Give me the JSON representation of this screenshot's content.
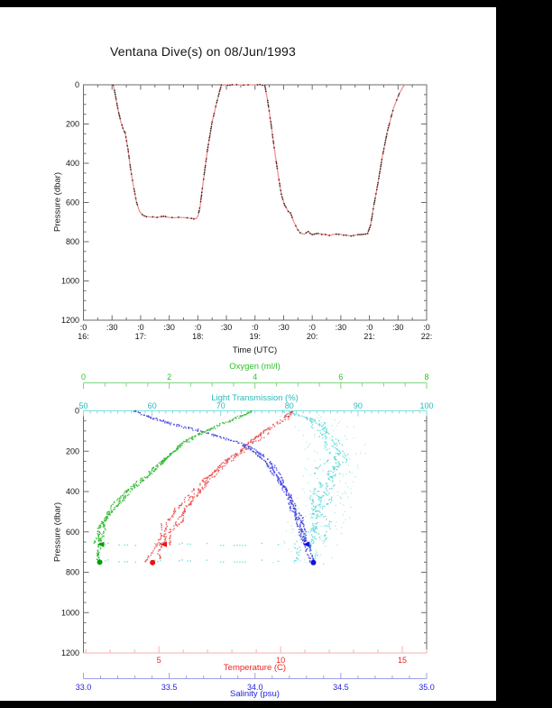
{
  "page": {
    "title": "Ventana Dive(s) on 08/Jun/1993",
    "background": "#ffffff",
    "frame_color": "#000000"
  },
  "colors": {
    "text": "#151515",
    "frame_axis": "#6b6b6b",
    "profile_line": "#f49090",
    "profile_dot": "#1a1a1a",
    "oxygen_line": "#7fd87f",
    "oxygen_text": "#2fbf2f",
    "light_line": "#7fdede",
    "light_text": "#25bcbc",
    "temp_line": "#f7b2b2",
    "temp_text": "#ee2222",
    "sal_line": "#9f9fe8",
    "sal_text": "#2222dd"
  },
  "chart_data": [
    {
      "type": "line",
      "title": "Ventana Dive(s) on 08/Jun/1993",
      "xlabel": "Time (UTC)",
      "ylabel": "Pressure (dbar)",
      "xlim": [
        16,
        22
      ],
      "ylim": [
        0,
        1200
      ],
      "y_reversed": true,
      "x_ticks": [
        {
          "t": 16,
          "label": ":0",
          "hour": "16:"
        },
        {
          "t": 16.5,
          "label": ":30"
        },
        {
          "t": 17,
          "label": ":0",
          "hour": "17:"
        },
        {
          "t": 17.5,
          "label": ":30"
        },
        {
          "t": 18,
          "label": ":0",
          "hour": "18:"
        },
        {
          "t": 18.5,
          "label": ":30"
        },
        {
          "t": 19,
          "label": ":0",
          "hour": "19:"
        },
        {
          "t": 19.5,
          "label": ":30"
        },
        {
          "t": 20,
          "label": ":0",
          "hour": "20:"
        },
        {
          "t": 20.5,
          "label": ":30"
        },
        {
          "t": 21,
          "label": ":0",
          "hour": "21:"
        },
        {
          "t": 21.5,
          "label": ":30"
        },
        {
          "t": 22,
          "label": ":0",
          "hour": "22:"
        }
      ],
      "y_tick_labels": [
        0,
        200,
        400,
        600,
        800,
        1000,
        1200
      ],
      "y_major_step": 200,
      "y_minor_step": 50,
      "x_minor_step": 0.25,
      "series": [
        {
          "name": "dive-pressure-profile",
          "points": [
            [
              16.52,
              0
            ],
            [
              16.55,
              40
            ],
            [
              16.6,
              120
            ],
            [
              16.65,
              185
            ],
            [
              16.7,
              230
            ],
            [
              16.73,
              245
            ],
            [
              16.78,
              330
            ],
            [
              16.82,
              420
            ],
            [
              16.87,
              510
            ],
            [
              16.93,
              600
            ],
            [
              16.98,
              645
            ],
            [
              17.03,
              663
            ],
            [
              17.1,
              672
            ],
            [
              17.25,
              676
            ],
            [
              17.4,
              672
            ],
            [
              17.55,
              678
            ],
            [
              17.7,
              676
            ],
            [
              17.85,
              680
            ],
            [
              17.97,
              683
            ],
            [
              18.0,
              672
            ],
            [
              18.04,
              620
            ],
            [
              18.1,
              480
            ],
            [
              18.17,
              330
            ],
            [
              18.25,
              190
            ],
            [
              18.33,
              90
            ],
            [
              18.41,
              2
            ],
            [
              18.6,
              0
            ],
            [
              18.8,
              1
            ],
            [
              19.0,
              0
            ],
            [
              19.17,
              1
            ],
            [
              19.22,
              80
            ],
            [
              19.28,
              200
            ],
            [
              19.33,
              310
            ],
            [
              19.4,
              450
            ],
            [
              19.46,
              560
            ],
            [
              19.52,
              615
            ],
            [
              19.58,
              645
            ],
            [
              19.62,
              655
            ],
            [
              19.68,
              700
            ],
            [
              19.73,
              730
            ],
            [
              19.79,
              756
            ],
            [
              19.86,
              762
            ],
            [
              19.93,
              748
            ],
            [
              20.0,
              765
            ],
            [
              20.1,
              758
            ],
            [
              20.2,
              763
            ],
            [
              20.3,
              768
            ],
            [
              20.42,
              760
            ],
            [
              20.55,
              765
            ],
            [
              20.68,
              770
            ],
            [
              20.8,
              764
            ],
            [
              20.9,
              762
            ],
            [
              20.97,
              757
            ],
            [
              21.02,
              715
            ],
            [
              21.08,
              610
            ],
            [
              21.15,
              500
            ],
            [
              21.23,
              360
            ],
            [
              21.32,
              230
            ],
            [
              21.42,
              120
            ],
            [
              21.52,
              45
            ],
            [
              21.6,
              5
            ],
            [
              21.64,
              0
            ]
          ]
        }
      ]
    },
    {
      "type": "scatter",
      "ylabel": "Pressure (dbar)",
      "ylim": [
        0,
        1200
      ],
      "y_reversed": true,
      "y_tick_labels": [
        0,
        200,
        400,
        600,
        800,
        1000,
        1200
      ],
      "y_major_step": 200,
      "y_minor_step": 50,
      "axes": [
        {
          "name": "oxygen",
          "label": "Oxygen (ml/l)",
          "range": [
            0,
            8
          ],
          "major_ticks": [
            0,
            2,
            4,
            6,
            8
          ],
          "tick_labels": [
            "0",
            "2",
            "4",
            "6",
            "8"
          ],
          "minor_step": 0.5
        },
        {
          "name": "light",
          "label": "Light Transmission (%)",
          "range": [
            50,
            100
          ],
          "major_ticks": [
            50,
            60,
            70,
            80,
            90,
            100
          ],
          "tick_labels": [
            "50",
            "60",
            "70",
            "80",
            "90",
            "100"
          ],
          "minor_step": 1
        },
        {
          "name": "temperature",
          "label": "Temperature (C)",
          "range": [
            1.9,
            16
          ],
          "major_ticks": [
            5,
            10,
            15
          ],
          "tick_labels": [
            "5",
            "10",
            "15"
          ],
          "minor_step": 1
        },
        {
          "name": "salinity",
          "label": "Salinity (psu)",
          "range": [
            33,
            35
          ],
          "major_ticks": [
            33,
            33.5,
            34,
            34.5,
            35
          ],
          "tick_labels": [
            "33.0",
            "33.5",
            "34.0",
            "34.5",
            "35.0"
          ],
          "minor_step": 0.1
        }
      ],
      "series": [
        {
          "name": "light-transmission-profile",
          "axis": "light",
          "seed": 22,
          "color": "#55d6d6",
          "spread": 2.0,
          "points": [
            [
              79,
              3
            ],
            [
              82,
              25
            ],
            [
              84.5,
              60
            ],
            [
              85.5,
              100
            ],
            [
              86.5,
              160
            ],
            [
              87,
              220
            ],
            [
              86.5,
              280
            ],
            [
              86,
              340
            ],
            [
              85.5,
              400
            ],
            [
              85,
              460
            ],
            [
              84.5,
              520
            ],
            [
              84,
              570
            ],
            [
              83.5,
              620
            ],
            [
              83,
              655
            ],
            [
              82.5,
              700
            ],
            [
              82,
              740
            ]
          ],
          "bottom_bands": [
            {
              "pressure": 662,
              "range": [
                52,
                81
              ]
            },
            {
              "pressure": 745,
              "range": [
                52,
                81
              ]
            }
          ],
          "scatter_cloud": {
            "count": 180,
            "spread": 9
          }
        },
        {
          "name": "oxygen-profile",
          "axis": "oxygen",
          "seed": 11,
          "color": "#2ab52a",
          "marker_color": "#00a000",
          "spread": 0.12,
          "points": [
            [
              3.9,
              3
            ],
            [
              3.7,
              25
            ],
            [
              3.3,
              60
            ],
            [
              2.9,
              95
            ],
            [
              2.55,
              130
            ],
            [
              2.3,
              165
            ],
            [
              2.05,
              210
            ],
            [
              1.85,
              250
            ],
            [
              1.6,
              300
            ],
            [
              1.35,
              350
            ],
            [
              1.05,
              400
            ],
            [
              0.85,
              450
            ],
            [
              0.65,
              500
            ],
            [
              0.5,
              550
            ],
            [
              0.42,
              600
            ],
            [
              0.38,
              645
            ],
            [
              0.36,
              700
            ],
            [
              0.37,
              748
            ]
          ],
          "markers": [
            {
              "shape": "arrow-left",
              "value": 0.41,
              "pressure": 662
            },
            {
              "shape": "dot",
              "value": 0.38,
              "pressure": 750
            }
          ]
        },
        {
          "name": "temperature-profile",
          "axis": "temperature",
          "seed": 33,
          "color": "#e84545",
          "marker_color": "#ee1111",
          "spread": 0.28,
          "points": [
            [
              10.45,
              2
            ],
            [
              10.2,
              35
            ],
            [
              9.7,
              75
            ],
            [
              9.2,
              120
            ],
            [
              8.6,
              170
            ],
            [
              8.1,
              215
            ],
            [
              7.6,
              265
            ],
            [
              7.15,
              320
            ],
            [
              6.7,
              380
            ],
            [
              6.35,
              430
            ],
            [
              6.0,
              480
            ],
            [
              5.7,
              530
            ],
            [
              5.45,
              575
            ],
            [
              5.25,
              615
            ],
            [
              5.15,
              650
            ],
            [
              5.0,
              690
            ],
            [
              4.74,
              750
            ]
          ],
          "markers": [
            {
              "shape": "arrow-left",
              "value": 5.2,
              "pressure": 662
            },
            {
              "shape": "dot",
              "value": 4.74,
              "pressure": 752
            }
          ]
        },
        {
          "name": "salinity-profile",
          "axis": "salinity",
          "seed": 44,
          "color": "#3a3ae0",
          "marker_color": "#1111dd",
          "spread": 0.03,
          "points": [
            [
              33.3,
              2
            ],
            [
              33.38,
              30
            ],
            [
              33.52,
              65
            ],
            [
              33.68,
              100
            ],
            [
              33.82,
              135
            ],
            [
              33.93,
              170
            ],
            [
              34.0,
              205
            ],
            [
              34.06,
              245
            ],
            [
              34.11,
              290
            ],
            [
              34.15,
              340
            ],
            [
              34.18,
              395
            ],
            [
              34.21,
              450
            ],
            [
              34.24,
              510
            ],
            [
              34.26,
              565
            ],
            [
              34.285,
              620
            ],
            [
              34.3,
              660
            ],
            [
              34.32,
              700
            ],
            [
              34.34,
              748
            ]
          ],
          "markers": [
            {
              "shape": "arrow-left",
              "value": 34.3,
              "pressure": 662
            },
            {
              "shape": "dot",
              "value": 34.34,
              "pressure": 752
            }
          ]
        }
      ]
    }
  ]
}
